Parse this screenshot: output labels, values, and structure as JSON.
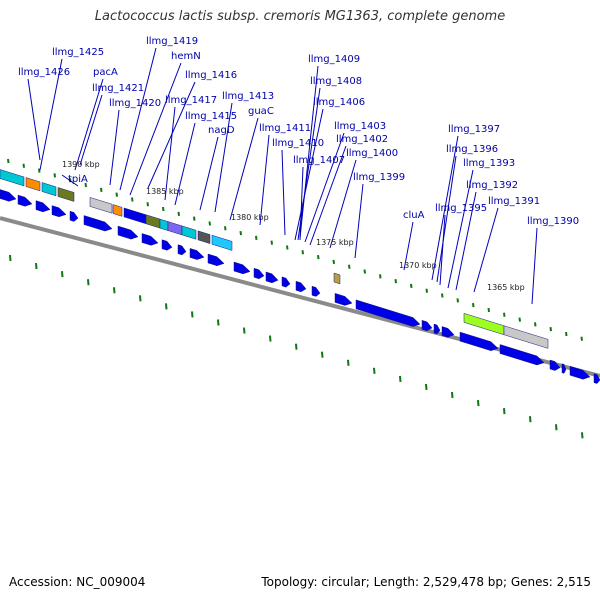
{
  "title": "Lactococcus lactis subsp. cremoris MG1363, complete genome",
  "footer": {
    "accession": "Accession: NC_009004",
    "stats": "Topology: circular; Length: 2,529,478 bp; Genes: 2,515"
  },
  "colors": {
    "cds_blue": "#0000e6",
    "backbone": "#808080",
    "label_blue": "#0000aa",
    "tick_green": "#117711",
    "cyan": "#00c8d2",
    "orange": "#ff8c00",
    "olive": "#6b7a1e",
    "light_gray": "#c8c8c8",
    "purple": "#7b68ee",
    "dark_gray": "#555555",
    "sky": "#1ec8ff",
    "lime": "#9dff20",
    "tan": "#b8a040"
  },
  "kbp_markers": [
    "1390 kbp",
    "1385 kbp",
    "1380 kbp",
    "1375 kbp",
    "1370 kbp",
    "1365 kbp"
  ],
  "genes": [
    "llmg_1426",
    "llmg_1425",
    "tpiA",
    "pacA",
    "llmg_1421",
    "llmg_1420",
    "llmg_1419",
    "hemN",
    "llmg_1417",
    "llmg_1416",
    "llmg_1415",
    "nagD",
    "llmg_1413",
    "guaC",
    "llmg_1411",
    "llmg_1410",
    "llmg_1409",
    "llmg_1408",
    "llmg_1406",
    "llmg_1407",
    "llmg_1403",
    "llmg_1402",
    "llmg_1400",
    "llmg_1399",
    "cluA",
    "llmg_1397",
    "llmg_1396",
    "llmg_1395",
    "llmg_1393",
    "llmg_1392",
    "llmg_1391",
    "llmg_1390"
  ]
}
